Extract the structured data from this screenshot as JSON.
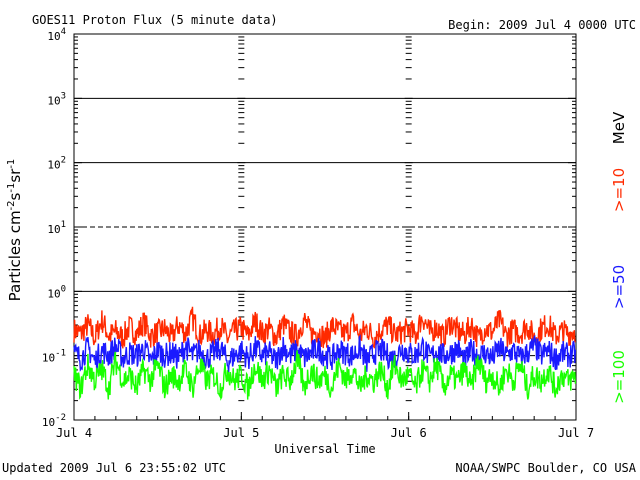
{
  "title": "GOES11 Proton Flux (5 minute data)",
  "begin": "Begin: 2009 Jul 4 0000 UTC",
  "updated": "Updated 2009 Jul  6 23:55:02 UTC",
  "credit": "NOAA/SWPC Boulder, CO USA",
  "colors": {
    "gt10": "#ff2a00",
    "gt50": "#1a1aff",
    "gt100": "#19ff00",
    "axis": "#000000"
  },
  "chart_data": {
    "type": "line",
    "title": "GOES11 Proton Flux (5 minute data)",
    "xlabel": "Universal Time",
    "ylabel_main": "Particles cm",
    "ylabel_sup1": "-2",
    "ylabel_mid1": "s",
    "ylabel_sup2": "-1",
    "ylabel_mid2": "sr",
    "ylabel_sup3": "-1",
    "y_scale": "log",
    "ylim": [
      0.01,
      10000
    ],
    "y_ticks": [
      {
        "value": 10000,
        "base": "10",
        "exp": "4"
      },
      {
        "value": 1000,
        "base": "10",
        "exp": "3"
      },
      {
        "value": 100,
        "base": "10",
        "exp": "2"
      },
      {
        "value": 10,
        "base": "10",
        "exp": "1"
      },
      {
        "value": 1,
        "base": "10",
        "exp": "0"
      },
      {
        "value": 0.1,
        "base": "10",
        "exp": "-1"
      },
      {
        "value": 0.01,
        "base": "10",
        "exp": "-2"
      }
    ],
    "x_ticks": [
      {
        "value": "2009-07-04",
        "label": "Jul 4"
      },
      {
        "value": "2009-07-05",
        "label": "Jul 5"
      },
      {
        "value": "2009-07-06",
        "label": "Jul 6"
      },
      {
        "value": "2009-07-07",
        "label": "Jul 7"
      }
    ],
    "xlim": [
      "2009-07-04 00:00",
      "2009-07-07 00:00"
    ],
    "gridlines": [
      {
        "value": 1000,
        "style": "solid"
      },
      {
        "value": 100,
        "style": "solid"
      },
      {
        "value": 10,
        "style": "dashed"
      },
      {
        "value": 1,
        "style": "solid"
      },
      {
        "value": 0.1,
        "style": "dashed"
      }
    ],
    "units_label": "MeV",
    "series": [
      {
        "name": ">=10",
        "color": "#ff2a00",
        "level": 0.2,
        "x_step_hours": 1,
        "values": [
          0.25,
          0.22,
          0.3,
          0.18,
          0.35,
          0.2,
          0.24,
          0.19,
          0.28,
          0.21,
          0.33,
          0.2,
          0.23,
          0.26,
          0.19,
          0.3,
          0.22,
          0.38,
          0.2,
          0.25,
          0.21,
          0.29,
          0.18,
          0.24,
          0.27,
          0.2,
          0.34,
          0.22,
          0.26,
          0.19,
          0.31,
          0.23,
          0.2,
          0.36,
          0.21,
          0.25,
          0.18,
          0.29,
          0.24,
          0.22,
          0.32,
          0.2,
          0.27,
          0.19,
          0.25,
          0.3,
          0.21,
          0.23,
          0.26,
          0.2,
          0.4,
          0.22,
          0.28,
          0.19,
          0.33,
          0.24,
          0.21,
          0.3,
          0.18,
          0.27,
          0.23,
          0.35,
          0.2,
          0.25,
          0.22,
          0.29,
          0.19,
          0.26,
          0.31,
          0.2,
          0.24,
          0.22
        ]
      },
      {
        "name": ">=50",
        "color": "#1a1aff",
        "level": 0.1,
        "x_step_hours": 1,
        "values": [
          0.11,
          0.09,
          0.13,
          0.08,
          0.12,
          0.1,
          0.14,
          0.09,
          0.11,
          0.1,
          0.13,
          0.08,
          0.12,
          0.1,
          0.11,
          0.09,
          0.14,
          0.1,
          0.12,
          0.09,
          0.11,
          0.13,
          0.08,
          0.1,
          0.12,
          0.09,
          0.13,
          0.1,
          0.11,
          0.08,
          0.14,
          0.1,
          0.12,
          0.09,
          0.11,
          0.13,
          0.1,
          0.09,
          0.12,
          0.11,
          0.1,
          0.13,
          0.08,
          0.11,
          0.12,
          0.1,
          0.09,
          0.13,
          0.11,
          0.1,
          0.14,
          0.09,
          0.12,
          0.1,
          0.11,
          0.13,
          0.08,
          0.12,
          0.1,
          0.11,
          0.09,
          0.13,
          0.1,
          0.12,
          0.09,
          0.11,
          0.14,
          0.1,
          0.12,
          0.09,
          0.11,
          0.1
        ]
      },
      {
        "name": ">=100",
        "color": "#19ff00",
        "level": 0.04,
        "x_step_hours": 1,
        "values": [
          0.05,
          0.03,
          0.07,
          0.04,
          0.06,
          0.03,
          0.08,
          0.04,
          0.05,
          0.03,
          0.06,
          0.04,
          0.07,
          0.03,
          0.05,
          0.04,
          0.06,
          0.03,
          0.07,
          0.04,
          0.05,
          0.03,
          0.06,
          0.04,
          0.05,
          0.03,
          0.07,
          0.04,
          0.06,
          0.03,
          0.05,
          0.04,
          0.08,
          0.03,
          0.06,
          0.04,
          0.05,
          0.03,
          0.07,
          0.04,
          0.06,
          0.03,
          0.05,
          0.04,
          0.06,
          0.03,
          0.07,
          0.04,
          0.05,
          0.03,
          0.06,
          0.04,
          0.07,
          0.03,
          0.05,
          0.04,
          0.06,
          0.03,
          0.08,
          0.04,
          0.05,
          0.03,
          0.06,
          0.04,
          0.07,
          0.03,
          0.05,
          0.04,
          0.06,
          0.03,
          0.05,
          0.04
        ]
      }
    ]
  }
}
